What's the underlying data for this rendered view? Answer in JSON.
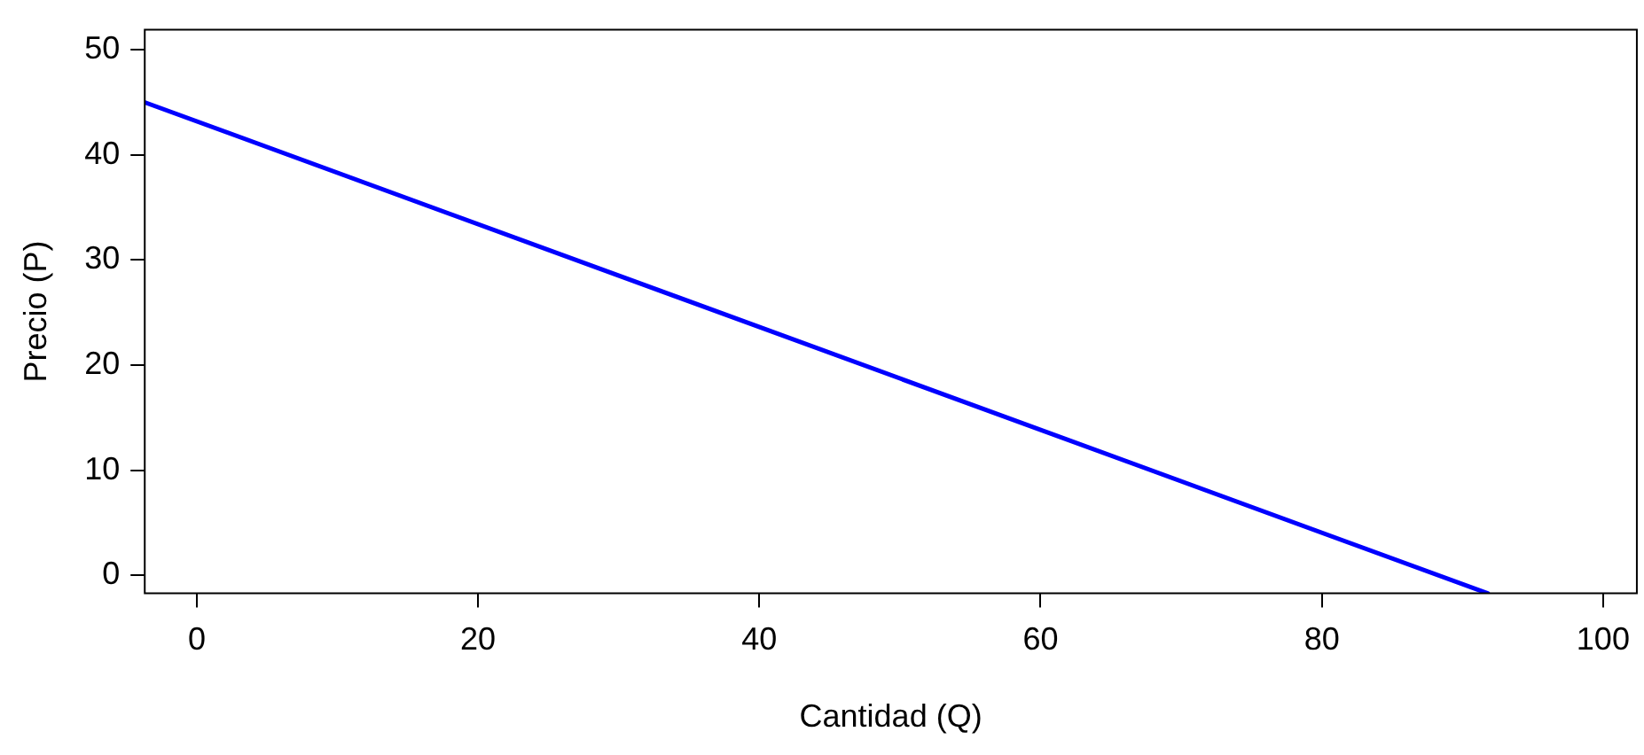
{
  "chart_data": {
    "type": "line",
    "xlabel": "Cantidad (Q)",
    "ylabel": "Precio (P)",
    "series": [
      {
        "color": "#0000ff",
        "x": [
          -3.7,
          91.8
        ],
        "values": [
          45,
          -1.7
        ]
      }
    ],
    "xlim": [
      -3.7,
      102.4
    ],
    "xticks": [
      0,
      20,
      40,
      60,
      80,
      100
    ],
    "ylim": [
      -1.7,
      51.9
    ],
    "yticks": [
      0,
      10,
      20,
      30,
      40,
      50
    ],
    "grid": false,
    "legend": false,
    "marker": "none",
    "line_style": "solid"
  }
}
